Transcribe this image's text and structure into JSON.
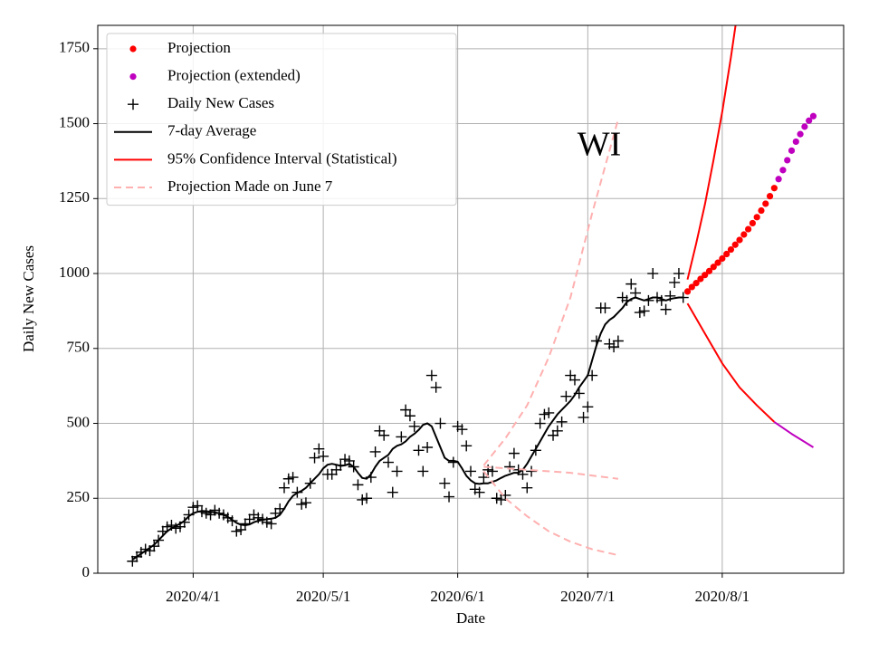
{
  "chart_data": {
    "type": "line",
    "annotation": "WI",
    "xlabel": "Date",
    "ylabel": "Daily New Cases",
    "xlim": [
      "2020/3/10",
      "2020/8/29"
    ],
    "xticks": [
      "2020/4/1",
      "2020/5/1",
      "2020/6/1",
      "2020/7/1",
      "2020/8/1"
    ],
    "ylim": [
      0,
      1828
    ],
    "yticks": [
      0,
      250,
      500,
      750,
      1000,
      1250,
      1500,
      1750
    ],
    "grid": true,
    "legend": "upper left",
    "x": [
      "2020/3/18",
      "2020/3/19",
      "2020/3/20",
      "2020/3/21",
      "2020/3/22",
      "2020/3/23",
      "2020/3/24",
      "2020/3/25",
      "2020/3/26",
      "2020/3/27",
      "2020/3/28",
      "2020/3/29",
      "2020/3/30",
      "2020/3/31",
      "2020/4/1",
      "2020/4/2",
      "2020/4/3",
      "2020/4/4",
      "2020/4/5",
      "2020/4/6",
      "2020/4/7",
      "2020/4/8",
      "2020/4/9",
      "2020/4/10",
      "2020/4/11",
      "2020/4/12",
      "2020/4/13",
      "2020/4/14",
      "2020/4/15",
      "2020/4/16",
      "2020/4/17",
      "2020/4/18",
      "2020/4/19",
      "2020/4/20",
      "2020/4/21",
      "2020/4/22",
      "2020/4/23",
      "2020/4/24",
      "2020/4/25",
      "2020/4/26",
      "2020/4/27",
      "2020/4/28",
      "2020/4/29",
      "2020/4/30",
      "2020/5/1",
      "2020/5/2",
      "2020/5/3",
      "2020/5/4",
      "2020/5/5",
      "2020/5/6",
      "2020/5/7",
      "2020/5/8",
      "2020/5/9",
      "2020/5/10",
      "2020/5/11",
      "2020/5/12",
      "2020/5/13",
      "2020/5/14",
      "2020/5/15",
      "2020/5/16",
      "2020/5/17",
      "2020/5/18",
      "2020/5/19",
      "2020/5/20",
      "2020/5/21",
      "2020/5/22",
      "2020/5/23",
      "2020/5/24",
      "2020/5/25",
      "2020/5/26",
      "2020/5/27",
      "2020/5/28",
      "2020/5/29",
      "2020/5/30",
      "2020/5/31",
      "2020/6/1",
      "2020/6/2",
      "2020/6/3",
      "2020/6/4",
      "2020/6/5",
      "2020/6/6",
      "2020/6/7",
      "2020/6/8",
      "2020/6/9",
      "2020/6/10",
      "2020/6/11",
      "2020/6/12",
      "2020/6/13",
      "2020/6/14",
      "2020/6/15",
      "2020/6/16",
      "2020/6/17",
      "2020/6/18",
      "2020/6/19",
      "2020/6/20",
      "2020/6/21",
      "2020/6/22",
      "2020/6/23",
      "2020/6/24",
      "2020/6/25",
      "2020/6/26",
      "2020/6/27",
      "2020/6/28",
      "2020/6/29",
      "2020/6/30",
      "2020/7/1",
      "2020/7/2",
      "2020/7/3",
      "2020/7/4",
      "2020/7/5",
      "2020/7/6",
      "2020/7/7",
      "2020/7/8",
      "2020/7/9",
      "2020/7/10",
      "2020/7/11",
      "2020/7/12",
      "2020/7/13",
      "2020/7/14",
      "2020/7/15",
      "2020/7/16",
      "2020/7/17",
      "2020/7/18",
      "2020/7/19",
      "2020/7/20",
      "2020/7/21",
      "2020/7/22",
      "2020/7/23"
    ],
    "series": [
      {
        "name": "Projection",
        "style": "dots",
        "color": "#ff0000",
        "x": [
          "2020/7/24",
          "2020/7/25",
          "2020/7/26",
          "2020/7/27",
          "2020/7/28",
          "2020/7/29",
          "2020/7/30",
          "2020/7/31",
          "2020/8/1",
          "2020/8/2",
          "2020/8/3",
          "2020/8/4",
          "2020/8/5",
          "2020/8/6",
          "2020/8/7",
          "2020/8/8",
          "2020/8/9",
          "2020/8/10",
          "2020/8/11",
          "2020/8/12",
          "2020/8/13"
        ],
        "values": [
          940,
          955,
          968,
          982,
          995,
          1008,
          1022,
          1036,
          1050,
          1065,
          1080,
          1096,
          1112,
          1130,
          1148,
          1168,
          1188,
          1210,
          1233,
          1258,
          1285
        ]
      },
      {
        "name": "Projection (extended)",
        "style": "dots",
        "color": "#bf00bf",
        "x": [
          "2020/8/14",
          "2020/8/15",
          "2020/8/16",
          "2020/8/17",
          "2020/8/18",
          "2020/8/19",
          "2020/8/20",
          "2020/8/21",
          "2020/8/22"
        ],
        "values": [
          1315,
          1345,
          1378,
          1410,
          1440,
          1465,
          1490,
          1510,
          1525
        ]
      },
      {
        "name": "Daily New Cases",
        "style": "plus",
        "color": "#000000",
        "values": [
          40,
          55,
          70,
          80,
          75,
          90,
          110,
          140,
          155,
          160,
          150,
          155,
          170,
          195,
          220,
          225,
          205,
          200,
          195,
          210,
          200,
          195,
          185,
          175,
          140,
          145,
          165,
          180,
          195,
          185,
          180,
          170,
          165,
          200,
          215,
          285,
          315,
          320,
          270,
          230,
          235,
          300,
          385,
          415,
          390,
          330,
          330,
          345,
          360,
          380,
          375,
          355,
          295,
          245,
          250,
          320,
          405,
          475,
          460,
          370,
          270,
          340,
          455,
          545,
          525,
          490,
          410,
          340,
          420,
          660,
          620,
          500,
          300,
          255,
          370,
          490,
          480,
          425,
          340,
          280,
          270,
          320,
          345,
          340,
          250,
          245,
          260,
          355,
          400,
          345,
          330,
          285,
          340,
          410,
          500,
          530,
          535,
          460,
          475,
          505,
          590,
          660,
          645,
          600,
          520,
          555,
          660,
          775,
          885,
          885,
          765,
          755,
          775,
          920,
          910,
          965,
          935,
          870,
          875,
          910,
          1000,
          920,
          910,
          880,
          925,
          970,
          1000,
          920
        ]
      },
      {
        "name": "7-day Average",
        "style": "line",
        "color": "#000000",
        "values": [
          45,
          55,
          65,
          75,
          85,
          95,
          110,
          125,
          140,
          150,
          158,
          165,
          175,
          190,
          200,
          205,
          208,
          207,
          205,
          203,
          200,
          195,
          188,
          178,
          168,
          162,
          160,
          163,
          170,
          175,
          178,
          180,
          182,
          185,
          195,
          215,
          240,
          258,
          268,
          275,
          285,
          300,
          315,
          330,
          350,
          362,
          365,
          362,
          358,
          360,
          365,
          355,
          335,
          318,
          315,
          330,
          355,
          375,
          385,
          395,
          415,
          425,
          430,
          440,
          455,
          465,
          478,
          495,
          500,
          490,
          455,
          420,
          385,
          375,
          375,
          372,
          350,
          325,
          310,
          300,
          298,
          300,
          300,
          305,
          310,
          318,
          325,
          330,
          335,
          335,
          345,
          365,
          390,
          415,
          440,
          465,
          490,
          510,
          530,
          545,
          560,
          575,
          595,
          620,
          640,
          660,
          710,
          760,
          800,
          830,
          845,
          855,
          870,
          885,
          905,
          915,
          920,
          915,
          910,
          915,
          920,
          920,
          915,
          910,
          915,
          918,
          920,
          920
        ]
      },
      {
        "name": "95% Confidence Interval (Statistical)",
        "style": "line",
        "color": "#ff0000",
        "x": [
          "2020/7/24",
          "2020/7/26",
          "2020/7/28",
          "2020/7/30",
          "2020/8/1",
          "2020/8/3",
          "2020/8/5",
          null,
          "2020/7/24",
          "2020/7/28",
          "2020/8/1",
          "2020/8/5",
          "2020/8/9",
          "2020/8/13"
        ],
        "values": [
          980,
          1100,
          1230,
          1380,
          1540,
          1720,
          1920,
          null,
          900,
          800,
          700,
          620,
          560,
          505
        ]
      },
      {
        "name": "Projection Made on June 7",
        "style": "dashed",
        "color": "#ffb0b0",
        "x": [
          "2020/6/7",
          "2020/6/12",
          "2020/6/17",
          "2020/6/22",
          "2020/6/27",
          "2020/7/2",
          "2020/7/8",
          null,
          "2020/6/7",
          "2020/6/17",
          "2020/6/27",
          "2020/7/8",
          null,
          "2020/6/7",
          "2020/6/12",
          "2020/6/17",
          "2020/6/22",
          "2020/6/27",
          "2020/7/2",
          "2020/7/8"
        ],
        "values": [
          360,
          450,
          560,
          720,
          920,
          1200,
          1515,
          null,
          355,
          345,
          335,
          315,
          null,
          340,
          250,
          190,
          140,
          105,
          80,
          60
        ]
      },
      {
        "style": "line",
        "color": "#bf00bf",
        "x": [
          "2020/8/13",
          "2020/8/17",
          "2020/8/22"
        ],
        "values": [
          505,
          465,
          420
        ]
      }
    ]
  }
}
